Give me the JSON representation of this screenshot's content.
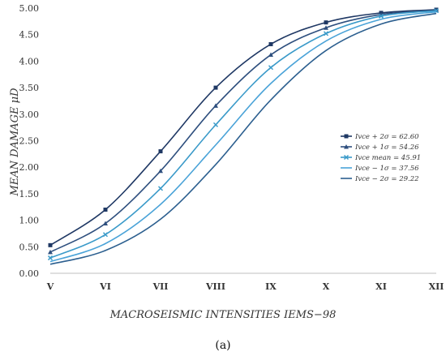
{
  "chart_data": {
    "type": "line",
    "categories": [
      "V",
      "VI",
      "VII",
      "VIII",
      "IX",
      "X",
      "XI",
      "XII"
    ],
    "ylabel": "MEAN DAMAGE μD",
    "xlabel": "MACROSEISMIC INTENSITIES IEMS−98",
    "ylim": [
      0,
      5
    ],
    "yticks": [
      "0.00",
      "0.50",
      "1.00",
      "1.50",
      "2.00",
      "2.50",
      "3.00",
      "3.50",
      "4.00",
      "4.50",
      "5.00"
    ],
    "grid": false,
    "legend_position": "right",
    "series": [
      {
        "name": "Ivce + 2σ = 62.60",
        "color": "#1f3864",
        "marker": "square",
        "values": [
          0.53,
          1.2,
          2.3,
          3.5,
          4.32,
          4.73,
          4.91,
          4.97
        ]
      },
      {
        "name": "Ivce + 1σ = 54.26",
        "color": "#2e4f7e",
        "marker": "triangle",
        "values": [
          0.4,
          0.94,
          1.93,
          3.16,
          4.12,
          4.63,
          4.88,
          4.96
        ]
      },
      {
        "name": "Ivce mean = 45.91",
        "color": "#3a9ac9",
        "marker": "x",
        "values": [
          0.29,
          0.73,
          1.6,
          2.8,
          3.88,
          4.52,
          4.85,
          4.95
        ]
      },
      {
        "name": "Ivce − 1σ = 37.56",
        "color": "#4aa3d8",
        "marker": "none",
        "values": [
          0.22,
          0.56,
          1.3,
          2.42,
          3.58,
          4.38,
          4.79,
          4.93
        ]
      },
      {
        "name": "Ivce − 2σ = 29.22",
        "color": "#2c5f8f",
        "marker": "none",
        "values": [
          0.17,
          0.43,
          1.02,
          2.05,
          3.27,
          4.2,
          4.7,
          4.9
        ]
      }
    ]
  },
  "caption": "(a)"
}
